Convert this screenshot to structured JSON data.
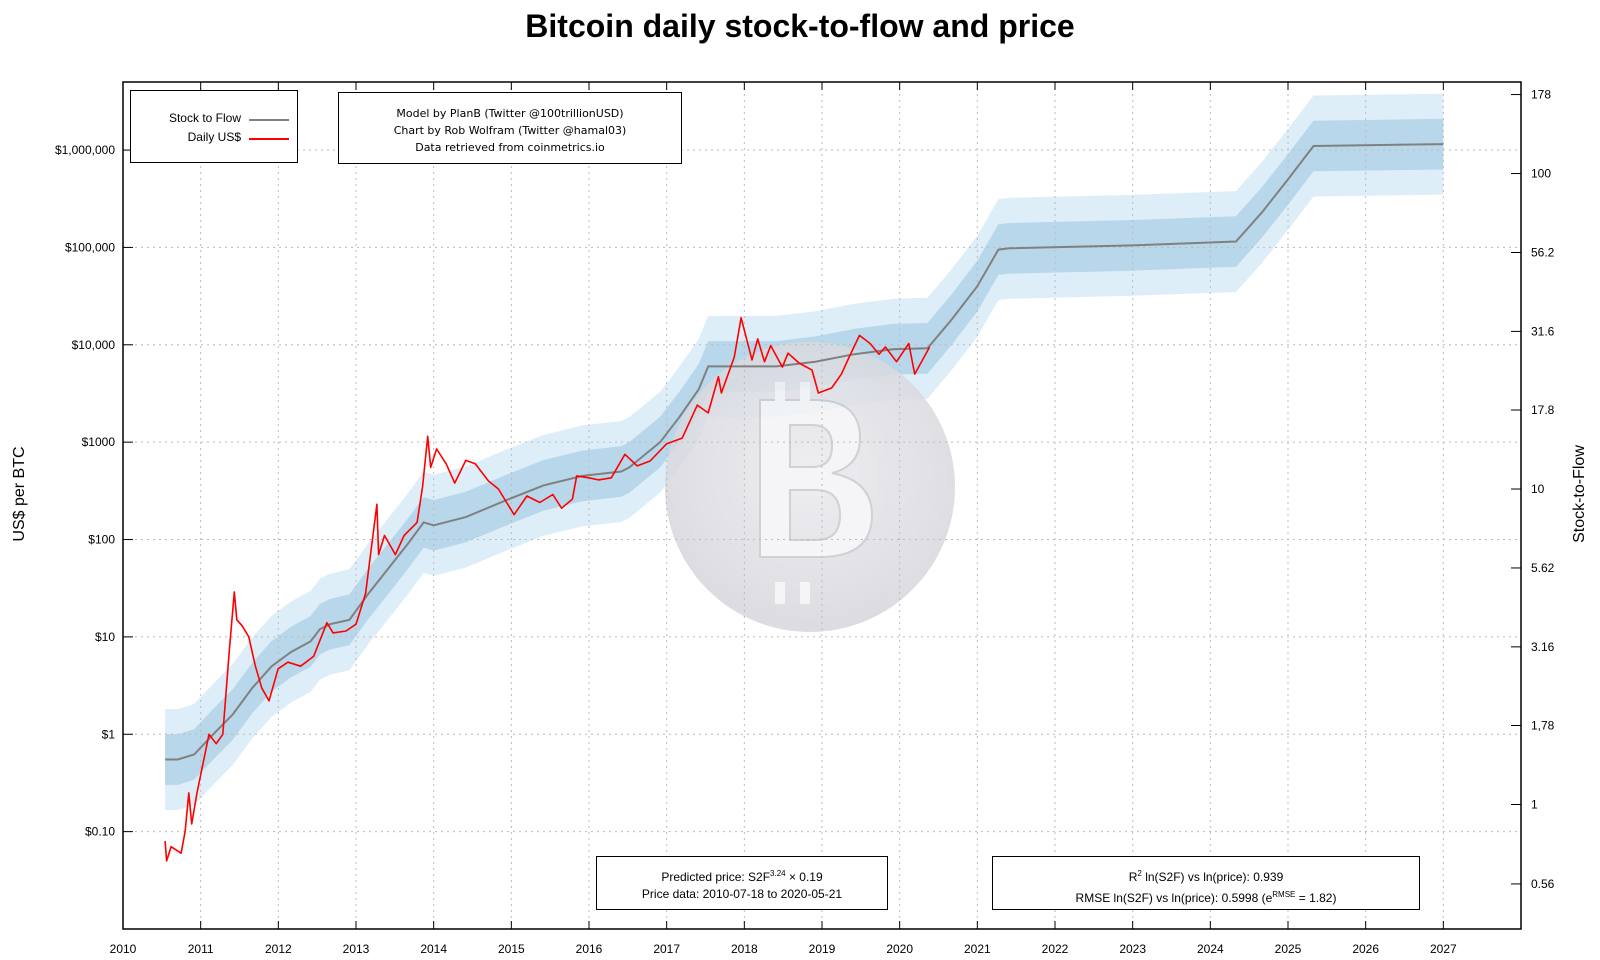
{
  "title": "Bitcoin daily stock-to-flow and price",
  "y_left_label": "US$ per BTC",
  "y_right_label": "Stock-to-Flow",
  "legend": {
    "s2f": "Stock to Flow",
    "price": "Daily US$"
  },
  "credits": [
    "Model by PlanB (Twitter @100trillionUSD)",
    "Chart by Rob Wolfram (Twitter @hamal03)",
    "Data retrieved from coinmetrics.io"
  ],
  "prediction": {
    "prefix": "Predicted price: S2F",
    "exponent": "3.24",
    "suffix": " × 0.19",
    "range_text": "Price data: 2010-07-18 to 2020-05-21"
  },
  "stats": {
    "r2_sup": "2",
    "r2_text": " ln(S2F) vs ln(price): 0.939",
    "rmse_prefix": "RMSE ln(S2F) vs ln(price): 0.5998 (e",
    "rmse_sup": "RMSE",
    "rmse_suffix": " = 1.82)"
  },
  "colors": {
    "s2f": "#808080",
    "price": "#ff0000",
    "band_inner": "#b8d7ea",
    "band_outer": "#ddeef9",
    "grid": "#bbbbbb",
    "watermark": "#d8d8dc"
  },
  "chart_data": {
    "type": "line",
    "x_ticks": [
      "2010",
      "2011",
      "2012",
      "2013",
      "2014",
      "2015",
      "2016",
      "2017",
      "2018",
      "2019",
      "2020",
      "2021",
      "2022",
      "2023",
      "2024",
      "2025",
      "2026",
      "2027"
    ],
    "y_left": {
      "scale": "log",
      "ylim": [
        0.01,
        5000000
      ],
      "ticks": [
        0.1,
        1,
        10,
        100,
        1000,
        10000,
        100000,
        1000000
      ],
      "tick_labels": [
        "$0.10",
        "$1",
        "$10",
        "$100",
        "$1000",
        "$10,000",
        "$100,000",
        "$1,000,000"
      ]
    },
    "y_right": {
      "scale": "log",
      "ticks": [
        0.56,
        1,
        1.78,
        3.16,
        5.62,
        10,
        17.8,
        31.6,
        56.2,
        100,
        178
      ],
      "tick_labels": [
        "0.56",
        "1",
        "1,78",
        "3.16",
        "5.62",
        "10",
        "17.8",
        "31.6",
        "56.2",
        "100",
        "178"
      ]
    },
    "grid": true,
    "legend_position": "top-left",
    "series": [
      {
        "name": "Stock to Flow",
        "unit": "US$ (model price)",
        "points": [
          [
            "2010-07-18",
            0.55
          ],
          [
            "2010-09-15",
            0.55
          ],
          [
            "2010-12-01",
            0.62
          ],
          [
            "2011-03-01",
            1.0
          ],
          [
            "2011-06-01",
            1.6
          ],
          [
            "2011-09-01",
            3.0
          ],
          [
            "2011-12-01",
            5.0
          ],
          [
            "2012-03-01",
            7.0
          ],
          [
            "2012-06-01",
            9.0
          ],
          [
            "2012-07-15",
            12.0
          ],
          [
            "2012-09-01",
            13.5
          ],
          [
            "2012-12-01",
            15.0
          ],
          [
            "2013-03-01",
            28.0
          ],
          [
            "2013-06-01",
            50.0
          ],
          [
            "2013-09-01",
            90.0
          ],
          [
            "2013-11-15",
            150.0
          ],
          [
            "2014-01-01",
            140.0
          ],
          [
            "2014-06-01",
            170.0
          ],
          [
            "2014-12-01",
            250.0
          ],
          [
            "2015-06-01",
            360.0
          ],
          [
            "2015-12-01",
            450.0
          ],
          [
            "2016-06-01",
            500.0
          ],
          [
            "2016-07-09",
            550.0
          ],
          [
            "2016-12-01",
            1000.0
          ],
          [
            "2017-03-01",
            1800.0
          ],
          [
            "2017-06-01",
            3500.0
          ],
          [
            "2017-07-15",
            6000.0
          ],
          [
            "2018-06-01",
            6000.0
          ],
          [
            "2018-12-01",
            6700.0
          ],
          [
            "2019-06-01",
            8000.0
          ],
          [
            "2019-12-01",
            9000.0
          ],
          [
            "2020-05-11",
            9200.0
          ],
          [
            "2020-09-01",
            18000.0
          ],
          [
            "2021-01-01",
            40000.0
          ],
          [
            "2021-04-10",
            95000.0
          ],
          [
            "2021-06-01",
            98000.0
          ],
          [
            "2023-01-01",
            105000.0
          ],
          [
            "2024-05-01",
            115000.0
          ],
          [
            "2024-09-01",
            230000.0
          ],
          [
            "2025-01-01",
            500000.0
          ],
          [
            "2025-05-01",
            1100000.0
          ],
          [
            "2027-01-01",
            1150000.0
          ]
        ]
      },
      {
        "name": "Daily US$",
        "unit": "US$",
        "points": [
          [
            "2010-07-18",
            0.08
          ],
          [
            "2010-07-25",
            0.05
          ],
          [
            "2010-08-15",
            0.07
          ],
          [
            "2010-10-01",
            0.06
          ],
          [
            "2010-10-20",
            0.1
          ],
          [
            "2010-11-06",
            0.25
          ],
          [
            "2010-11-20",
            0.12
          ],
          [
            "2010-12-15",
            0.25
          ],
          [
            "2011-02-09",
            1.0
          ],
          [
            "2011-03-15",
            0.8
          ],
          [
            "2011-04-15",
            1.0
          ],
          [
            "2011-05-15",
            7.0
          ],
          [
            "2011-06-08",
            29.0
          ],
          [
            "2011-06-20",
            15.0
          ],
          [
            "2011-07-15",
            13.0
          ],
          [
            "2011-08-15",
            10.0
          ],
          [
            "2011-09-15",
            5.0
          ],
          [
            "2011-10-15",
            3.0
          ],
          [
            "2011-11-18",
            2.2
          ],
          [
            "2011-12-31",
            4.7
          ],
          [
            "2012-02-15",
            5.5
          ],
          [
            "2012-04-15",
            5.0
          ],
          [
            "2012-06-15",
            6.3
          ],
          [
            "2012-08-17",
            14.0
          ],
          [
            "2012-09-15",
            11.0
          ],
          [
            "2012-11-15",
            11.5
          ],
          [
            "2013-01-01",
            13.5
          ],
          [
            "2013-02-15",
            28.0
          ],
          [
            "2013-04-09",
            230.0
          ],
          [
            "2013-04-17",
            70.0
          ],
          [
            "2013-05-15",
            110.0
          ],
          [
            "2013-07-05",
            70.0
          ],
          [
            "2013-08-15",
            110.0
          ],
          [
            "2013-10-15",
            150.0
          ],
          [
            "2013-11-10",
            350.0
          ],
          [
            "2013-12-04",
            1150.0
          ],
          [
            "2013-12-18",
            550.0
          ],
          [
            "2014-01-15",
            850.0
          ],
          [
            "2014-03-01",
            600.0
          ],
          [
            "2014-04-10",
            380.0
          ],
          [
            "2014-06-01",
            650.0
          ],
          [
            "2014-07-15",
            600.0
          ],
          [
            "2014-09-15",
            400.0
          ],
          [
            "2014-11-01",
            330.0
          ],
          [
            "2015-01-14",
            180.0
          ],
          [
            "2015-03-15",
            280.0
          ],
          [
            "2015-05-15",
            240.0
          ],
          [
            "2015-07-15",
            290.0
          ],
          [
            "2015-08-25",
            210.0
          ],
          [
            "2015-10-15",
            260.0
          ],
          [
            "2015-11-04",
            450.0
          ],
          [
            "2015-12-31",
            430.0
          ],
          [
            "2016-02-15",
            410.0
          ],
          [
            "2016-04-15",
            430.0
          ],
          [
            "2016-06-18",
            750.0
          ],
          [
            "2016-08-15",
            570.0
          ],
          [
            "2016-10-15",
            640.0
          ],
          [
            "2016-12-31",
            960.0
          ],
          [
            "2017-03-15",
            1100.0
          ],
          [
            "2017-05-25",
            2400.0
          ],
          [
            "2017-07-15",
            2000.0
          ],
          [
            "2017-09-01",
            4700.0
          ],
          [
            "2017-09-15",
            3200.0
          ],
          [
            "2017-11-15",
            7500.0
          ],
          [
            "2017-12-17",
            19000.0
          ],
          [
            "2018-02-06",
            7000.0
          ],
          [
            "2018-03-05",
            11500.0
          ],
          [
            "2018-04-06",
            6700.0
          ],
          [
            "2018-05-05",
            9800.0
          ],
          [
            "2018-06-29",
            5900.0
          ],
          [
            "2018-07-25",
            8200.0
          ],
          [
            "2018-09-15",
            6500.0
          ],
          [
            "2018-11-15",
            5500.0
          ],
          [
            "2018-12-15",
            3200.0
          ],
          [
            "2019-02-15",
            3600.0
          ],
          [
            "2019-04-02",
            5000.0
          ],
          [
            "2019-05-15",
            8000.0
          ],
          [
            "2019-06-26",
            12500.0
          ],
          [
            "2019-08-15",
            10300.0
          ],
          [
            "2019-09-26",
            8000.0
          ],
          [
            "2019-10-26",
            9500.0
          ],
          [
            "2019-12-17",
            6700.0
          ],
          [
            "2020-02-13",
            10300.0
          ],
          [
            "2020-03-12",
            5000.0
          ],
          [
            "2020-04-15",
            6800.0
          ],
          [
            "2020-05-21",
            9500.0
          ]
        ]
      }
    ]
  }
}
